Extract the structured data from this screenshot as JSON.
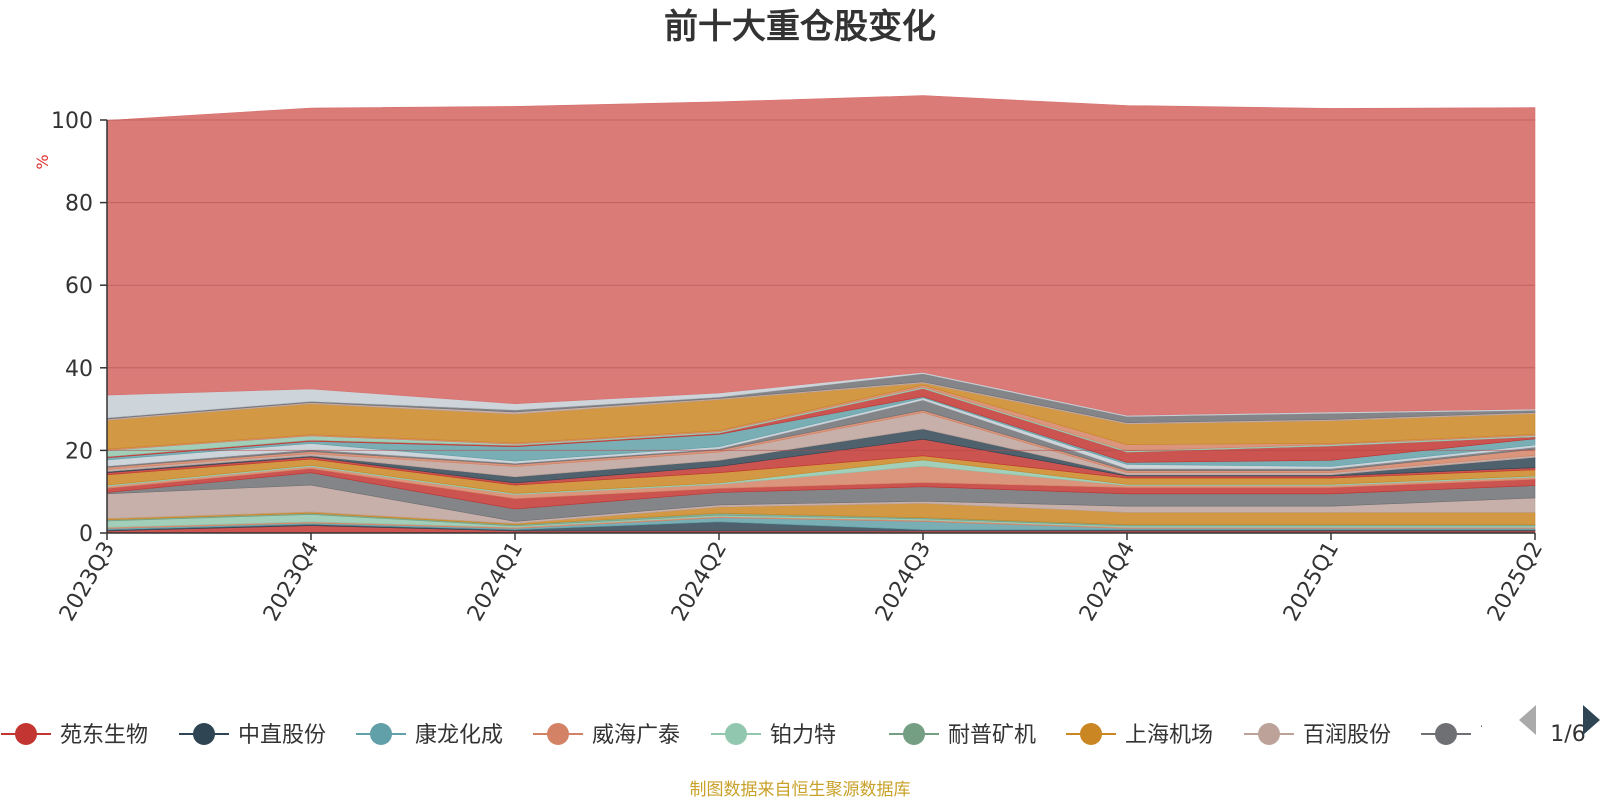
{
  "chart_data": {
    "type": "area",
    "title": "前十大重仓股变化",
    "ylabel": "%",
    "ylim": [
      0,
      100
    ],
    "yticks": [
      0,
      20,
      40,
      60,
      80,
      100
    ],
    "grid": true,
    "categories": [
      "2023Q3",
      "2023Q4",
      "2024Q1",
      "2024Q2",
      "2024Q3",
      "2024Q4",
      "2025Q1",
      "2025Q2"
    ],
    "series": [
      {
        "name": "苑东生物",
        "color": "#c23531",
        "values": [
          0.5,
          1.8,
          0.5,
          0.5,
          0.5,
          0.5,
          0.5,
          0.5
        ]
      },
      {
        "name": "中直股份",
        "color": "#2f4554",
        "values": [
          0.3,
          0.3,
          0.3,
          2.2,
          0.3,
          0.3,
          0.3,
          0.3
        ]
      },
      {
        "name": "康龙化成",
        "color": "#61a0a8",
        "values": [
          0.3,
          0.3,
          0.3,
          1.0,
          2.0,
          0.3,
          0.3,
          0.3
        ]
      },
      {
        "name": "威海广泰",
        "color": "#d48265",
        "values": [
          0.3,
          0.3,
          0.3,
          0.3,
          0.3,
          0.3,
          0.3,
          0.3
        ]
      },
      {
        "name": "铂力特",
        "color": "#91c7ae",
        "values": [
          1.5,
          1.8,
          0.3,
          0.3,
          0.3,
          0.3,
          0.3,
          0.3
        ]
      },
      {
        "name": "耐普矿机",
        "color": "#749f83",
        "values": [
          0.3,
          0.3,
          0.3,
          0.5,
          0.3,
          0.3,
          0.3,
          0.3
        ]
      },
      {
        "name": "上海机场",
        "color": "#ca8622",
        "values": [
          0.3,
          0.3,
          0.3,
          1.5,
          3.5,
          3.0,
          3.0,
          3.0
        ]
      },
      {
        "name": "百润股份",
        "color": "#bda29a",
        "values": [
          6.0,
          6.5,
          0.5,
          0.5,
          0.5,
          1.5,
          1.5,
          3.5
        ]
      },
      {
        "name": "高",
        "color": "#6e7074",
        "values": [
          0.3,
          3.0,
          3.0,
          3.0,
          3.5,
          3.0,
          3.0,
          3.0
        ]
      },
      {
        "name": "",
        "color": "#c23531",
        "values": [
          1.0,
          1.0,
          2.5,
          1.0,
          1.0,
          1.5,
          1.5,
          1.5
        ]
      },
      {
        "name": "",
        "color": "#d48265",
        "values": [
          0.5,
          0.5,
          1.0,
          1.0,
          4.0,
          0.5,
          0.5,
          0.5
        ]
      },
      {
        "name": "",
        "color": "#91c7ae",
        "values": [
          0.3,
          0.3,
          0.3,
          0.3,
          1.5,
          0.3,
          0.3,
          0.3
        ]
      },
      {
        "name": "",
        "color": "#ca8622",
        "values": [
          2.5,
          1.5,
          2.0,
          2.5,
          1.0,
          1.5,
          1.5,
          1.5
        ]
      },
      {
        "name": "",
        "color": "#c23531",
        "values": [
          0.5,
          0.5,
          0.5,
          1.5,
          4.0,
          0.5,
          0.5,
          0.5
        ]
      },
      {
        "name": "",
        "color": "#2f4554",
        "values": [
          0.3,
          0.3,
          1.5,
          1.5,
          2.5,
          0.3,
          0.3,
          2.5
        ]
      },
      {
        "name": "",
        "color": "#bda29a",
        "values": [
          0.5,
          0.5,
          2.5,
          2.0,
          4.0,
          0.5,
          0.5,
          0.5
        ]
      },
      {
        "name": "",
        "color": "#d48265",
        "values": [
          0.5,
          0.5,
          0.5,
          0.5,
          0.5,
          0.5,
          0.5,
          1.5
        ]
      },
      {
        "name": "",
        "color": "#6e7074",
        "values": [
          0.3,
          0.5,
          0.3,
          0.3,
          2.5,
          0.5,
          0.5,
          0.5
        ]
      },
      {
        "name": "",
        "color": "#c4ccd3",
        "values": [
          1.5,
          1.5,
          0.5,
          0.5,
          0.5,
          1.0,
          0.5,
          0.5
        ]
      },
      {
        "name": "",
        "color": "#61a0a8",
        "values": [
          0.5,
          0.5,
          3.5,
          3.0,
          0.3,
          0.5,
          1.5,
          1.5
        ]
      },
      {
        "name": "",
        "color": "#c23531",
        "values": [
          0.3,
          0.3,
          0.3,
          0.3,
          2.0,
          2.5,
          3.5,
          0.5
        ]
      },
      {
        "name": "",
        "color": "#91c7ae",
        "values": [
          1.5,
          1.0,
          0.3,
          0.3,
          0.3,
          0.3,
          0.3,
          0.3
        ]
      },
      {
        "name": "",
        "color": "#d48265",
        "values": [
          0.3,
          0.3,
          0.3,
          0.3,
          0.5,
          1.5,
          0.3,
          0.3
        ]
      },
      {
        "name": "",
        "color": "#ca8622",
        "values": [
          7.0,
          7.5,
          7.0,
          7.5,
          0.5,
          5.0,
          5.5,
          5.0
        ]
      },
      {
        "name": "",
        "color": "#bda29a",
        "values": [
          0.3,
          0.3,
          0.5,
          0.3,
          0.3,
          0.3,
          0.3,
          0.3
        ]
      },
      {
        "name": "",
        "color": "#6e7074",
        "values": [
          0.3,
          0.3,
          0.5,
          0.3,
          2.0,
          1.5,
          1.5,
          0.5
        ]
      },
      {
        "name": "",
        "color": "#c4ccd3",
        "values": [
          5.5,
          3.0,
          1.5,
          1.0,
          0.3,
          0.3,
          0.3,
          0.3
        ]
      },
      {
        "name": "",
        "color": "#d7706d",
        "values": [
          66.5,
          68.0,
          72.0,
          70.5,
          67.0,
          75.0,
          73.5,
          73.0
        ]
      }
    ]
  },
  "legend": {
    "pager": "1/6"
  },
  "footer": {
    "source": "制图数据来自恒生聚源数据库"
  }
}
